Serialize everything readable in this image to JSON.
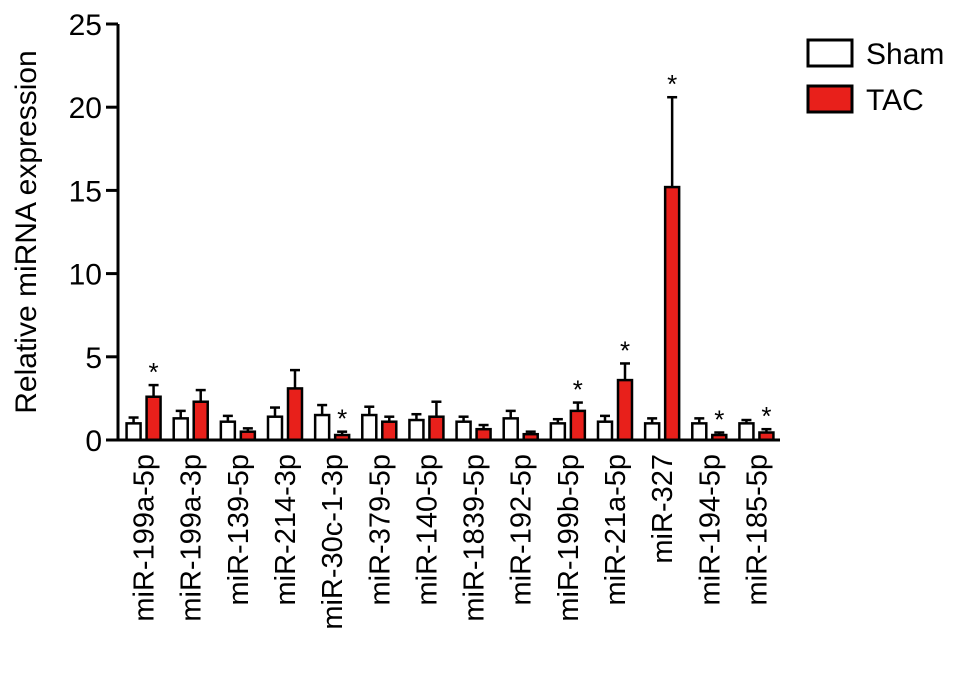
{
  "chart_data": {
    "type": "bar",
    "ylabel": "Relative miRNA expression",
    "ylim": [
      0,
      25
    ],
    "yticks": [
      0,
      5,
      10,
      15,
      20,
      25
    ],
    "grid": false,
    "legend_position": "top-right",
    "categories": [
      "miR-199a-5p",
      "miR-199a-3p",
      "miR-139-5p",
      "miR-214-3p",
      "miR-30c-1-3p",
      "miR-379-5p",
      "miR-140-5p",
      "miR-1839-5p",
      "miR-192-5p",
      "miR-199b-5p",
      "miR-21a-5p",
      "miR-327",
      "miR-194-5p",
      "miR-185-5p"
    ],
    "series": [
      {
        "name": "Sham",
        "color": "#ffffff",
        "values": [
          1.0,
          1.3,
          1.1,
          1.4,
          1.5,
          1.5,
          1.2,
          1.1,
          1.3,
          1.0,
          1.1,
          1.0,
          1.0,
          1.0
        ],
        "errors": [
          0.35,
          0.45,
          0.35,
          0.55,
          0.6,
          0.5,
          0.35,
          0.3,
          0.45,
          0.25,
          0.35,
          0.3,
          0.3,
          0.2
        ]
      },
      {
        "name": "TAC",
        "color": "#e8201b",
        "values": [
          2.6,
          2.3,
          0.5,
          3.1,
          0.3,
          1.1,
          1.4,
          0.65,
          0.35,
          1.75,
          3.6,
          15.2,
          0.3,
          0.45
        ],
        "errors": [
          0.7,
          0.7,
          0.2,
          1.1,
          0.2,
          0.3,
          0.9,
          0.25,
          0.15,
          0.5,
          1.0,
          5.4,
          0.15,
          0.2
        ]
      }
    ],
    "significance": {
      "symbol": "*",
      "series": "TAC",
      "categories": [
        "miR-199a-5p",
        "miR-30c-1-3p",
        "miR-199b-5p",
        "miR-21a-5p",
        "miR-327",
        "miR-194-5p",
        "miR-185-5p"
      ]
    }
  }
}
